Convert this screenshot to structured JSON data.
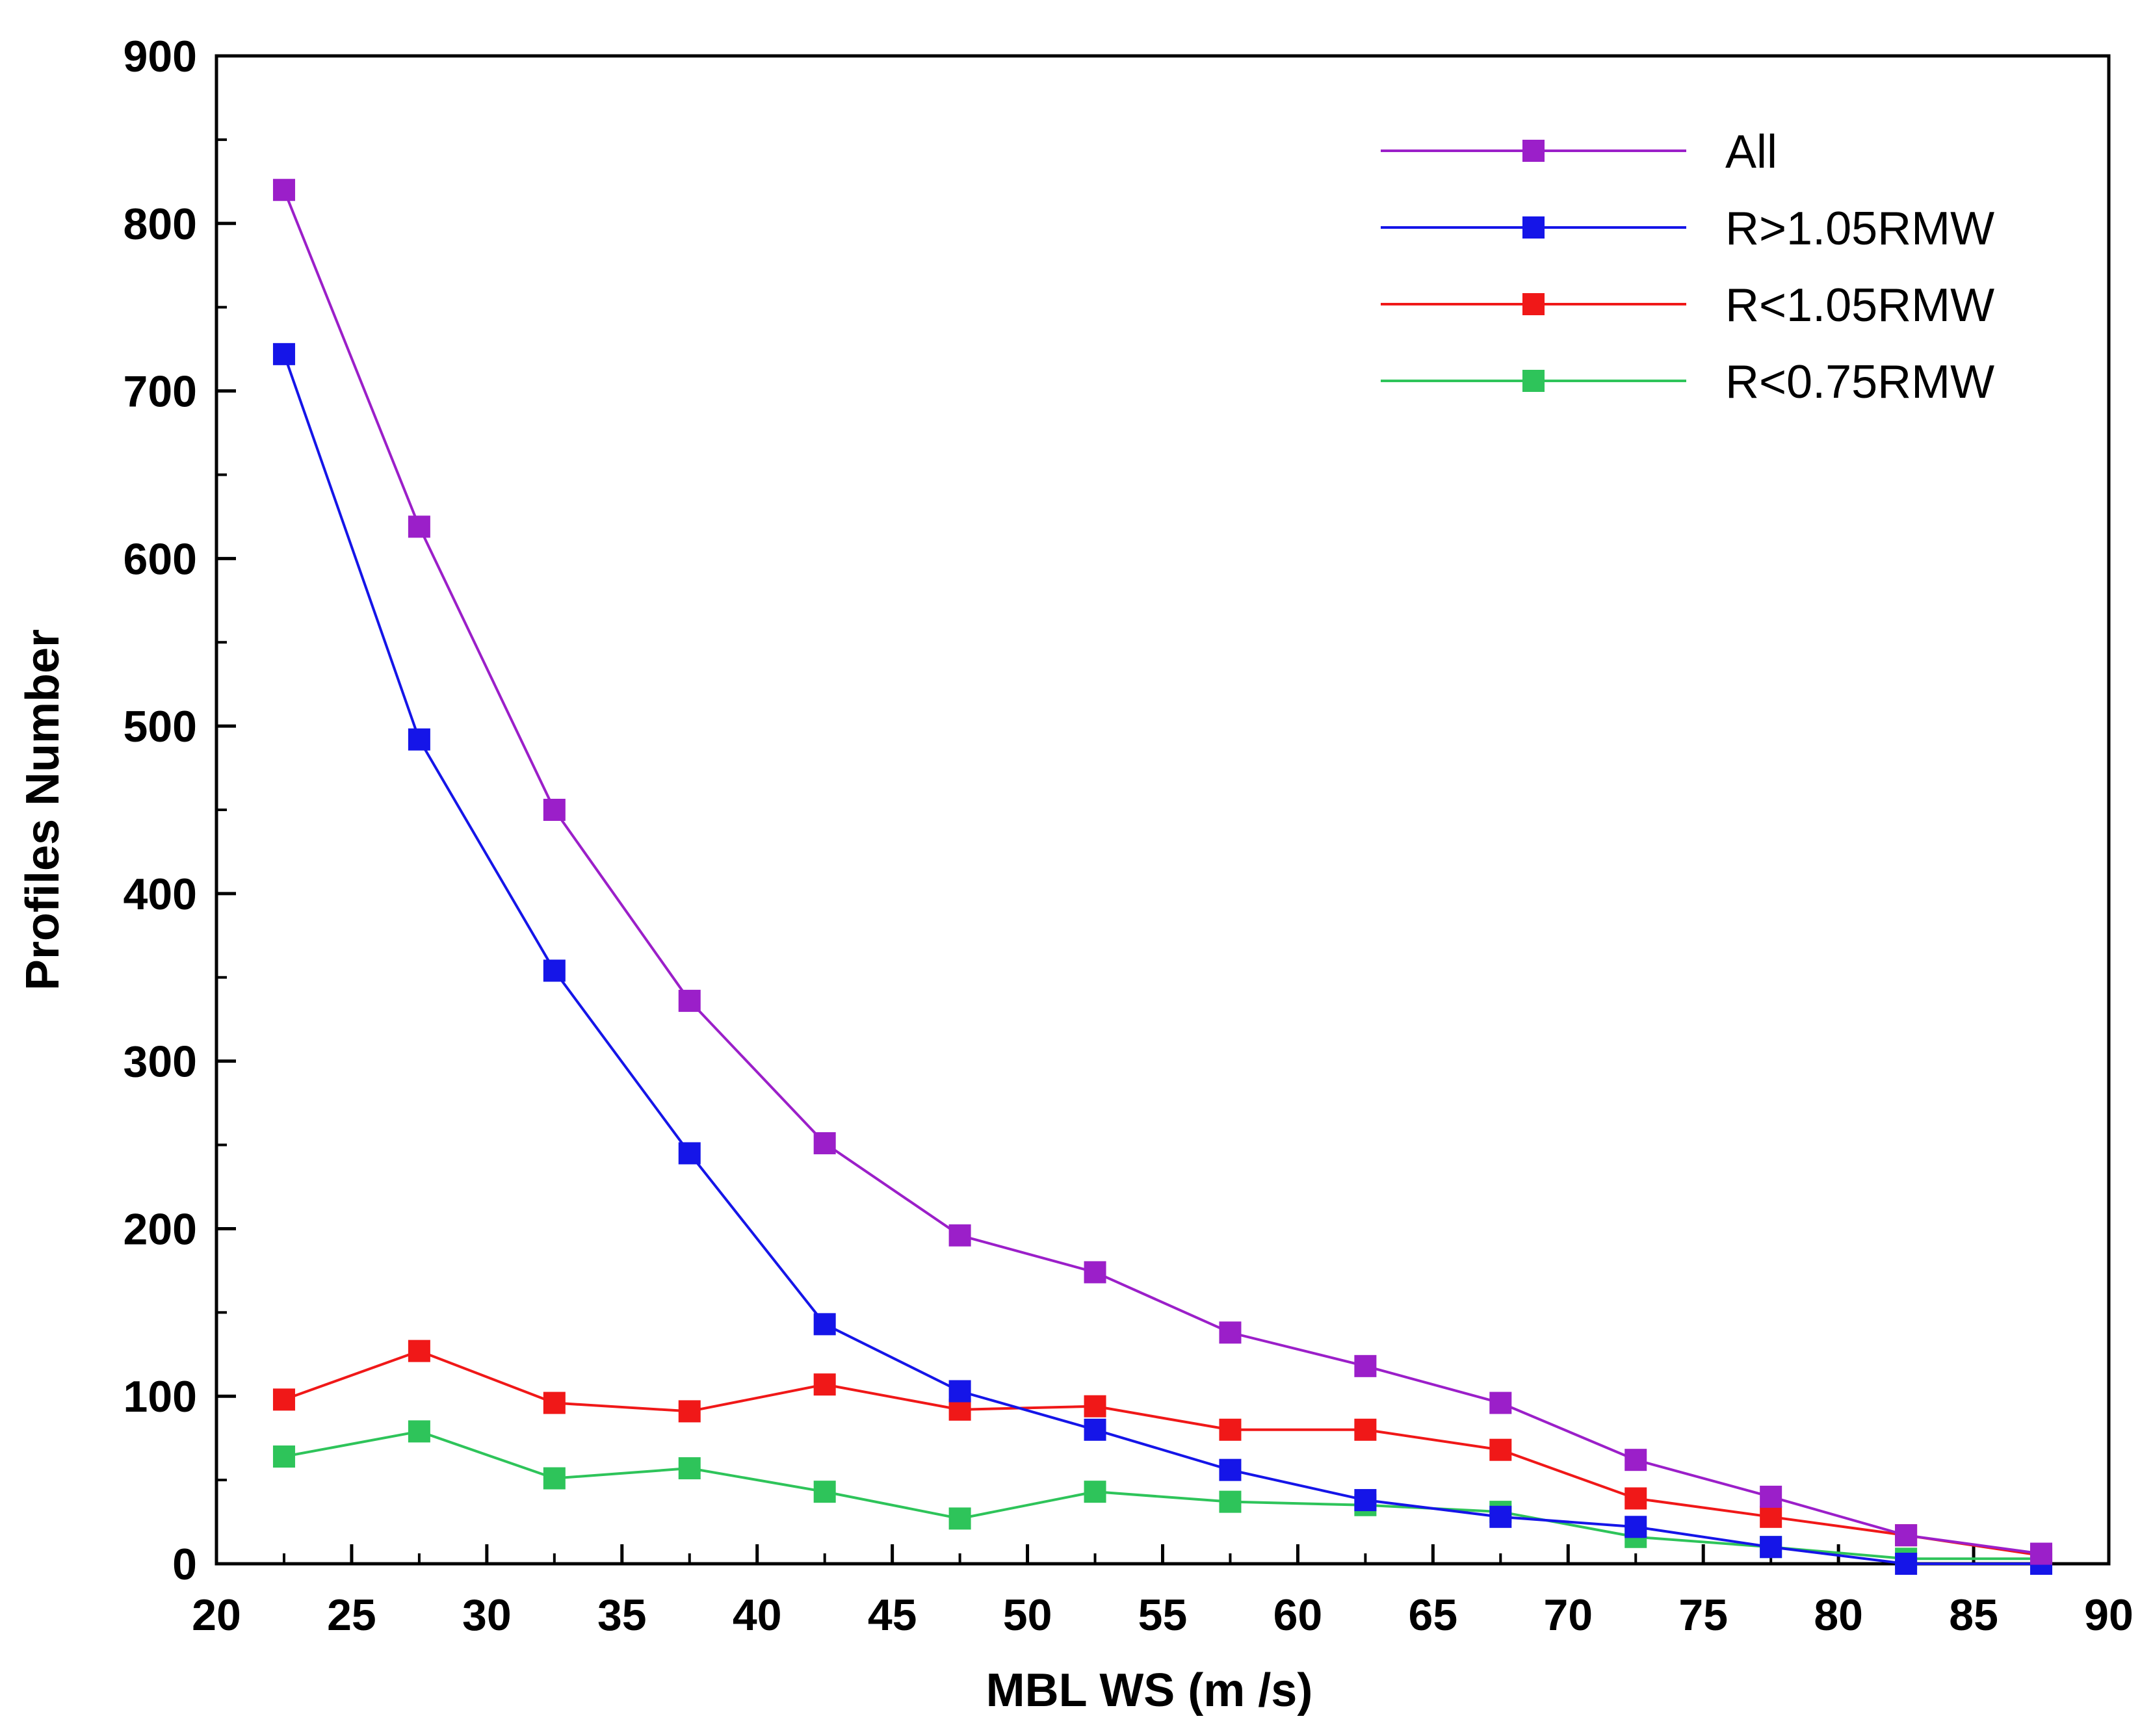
{
  "chart_data": {
    "type": "line",
    "title": "",
    "xlabel": "MBL WS (m /s)",
    "ylabel": "Profiles Number",
    "xlim": [
      20,
      90
    ],
    "ylim": [
      0,
      900
    ],
    "xticks": [
      20,
      25,
      30,
      35,
      40,
      45,
      50,
      55,
      60,
      65,
      70,
      75,
      80,
      85,
      90
    ],
    "yticks": [
      0,
      100,
      200,
      300,
      400,
      500,
      600,
      700,
      800,
      900
    ],
    "x": [
      22.5,
      27.5,
      32.5,
      37.5,
      42.5,
      47.5,
      52.5,
      57.5,
      62.5,
      67.5,
      72.5,
      77.5,
      82.5,
      87.5
    ],
    "legend_position": "top-right",
    "grid": false,
    "series": [
      {
        "name": "All",
        "color": "#9B1FC9",
        "values": [
          820,
          619,
          450,
          336,
          251,
          196,
          174,
          138,
          118,
          96,
          62,
          40,
          17,
          6
        ]
      },
      {
        "name": "R>1.05RMW",
        "color": "#1515E8",
        "values": [
          722,
          492,
          354,
          245,
          143,
          103,
          80,
          56,
          38,
          28,
          22,
          10,
          0,
          0
        ]
      },
      {
        "name": "R<1.05RMW",
        "color": "#F01818",
        "values": [
          98,
          127,
          96,
          91,
          107,
          92,
          94,
          80,
          80,
          68,
          39,
          28,
          17,
          5
        ]
      },
      {
        "name": "R<0.75RMW",
        "color": "#2EC45A",
        "values": [
          64,
          79,
          51,
          57,
          43,
          27,
          43,
          37,
          35,
          31,
          16,
          10,
          3,
          3
        ]
      }
    ]
  }
}
